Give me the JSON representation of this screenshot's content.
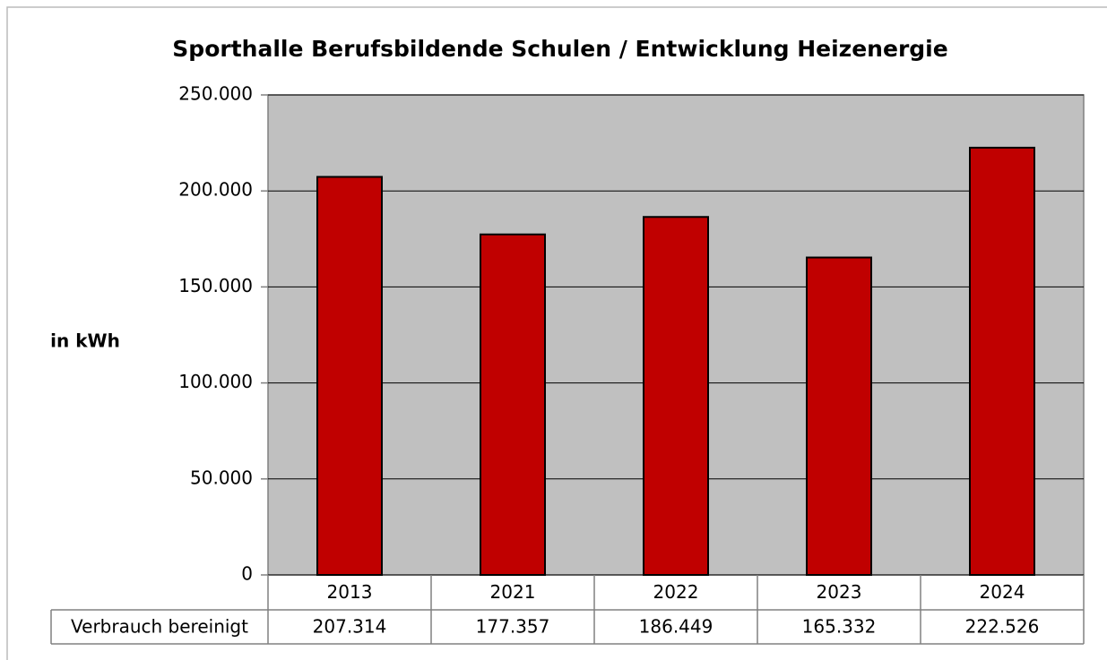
{
  "chart_data": {
    "type": "bar",
    "title": "Sporthalle Berufsbildende Schulen / Entwicklung Heizenergie",
    "y_label": "in kWh",
    "categories": [
      "2013",
      "2021",
      "2022",
      "2023",
      "2024"
    ],
    "series": [
      {
        "name": "Verbrauch bereinigt",
        "color": "#c00000",
        "values": [
          207314,
          177357,
          186449,
          165332,
          222526
        ],
        "value_labels": [
          "207.314",
          "177.357",
          "186.449",
          "165.332",
          "222.526"
        ]
      }
    ],
    "ylim": [
      0,
      250000
    ],
    "yticks": [
      0,
      {
        "value": 50000,
        "label": "50.000"
      },
      {
        "value": 100000,
        "label": "100.000"
      },
      {
        "value": 150000,
        "label": "150.000"
      },
      {
        "value": 200000,
        "label": "200.000"
      },
      {
        "value": 250000,
        "label": "250.000"
      }
    ],
    "grid": true
  }
}
